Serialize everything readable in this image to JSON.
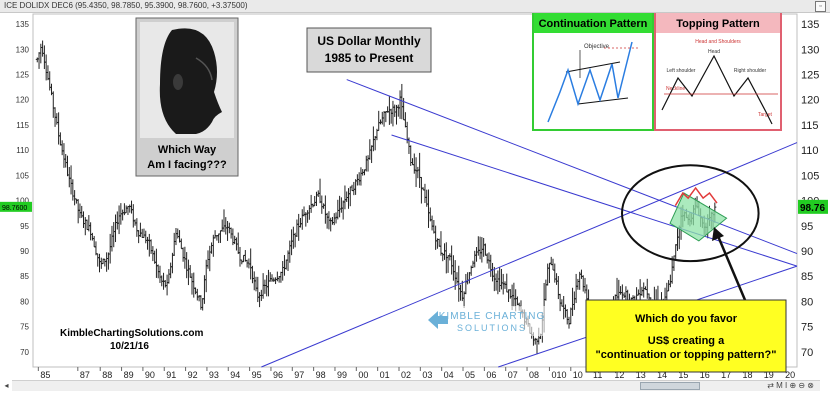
{
  "header": {
    "symbol_text": "ICE DOLIDX DEC6 (95.4350, 98.7850, 95.3900, 98.7600, +3.37500)",
    "window_icon": "restore-icon"
  },
  "title_box": {
    "line1": "US Dollar Monthly",
    "line2": "1985 to Present"
  },
  "photo_box": {
    "caption1": "Which Way",
    "caption2": "Am I facing???"
  },
  "continuation_box": {
    "title": "Continuation Pattern",
    "inner_label": "Objective"
  },
  "topping_box": {
    "title": "Topping Pattern",
    "inner_title": "Head and Shoulders",
    "head": "Head",
    "left_shoulder": "Left shoulder",
    "right_shoulder": "Right shoulder",
    "neckline": "Neckline",
    "target": "Target"
  },
  "callout": {
    "line1": "Which do you favor",
    "line2": "US$ creating a",
    "line3": "\"continuation or topping pattern?\""
  },
  "watermark": {
    "line1": "KIMBLE CHARTING",
    "line2": "SOLUTIONS"
  },
  "footer": {
    "site": "KimbleChartingSolutions.com",
    "date": "10/21/16"
  },
  "price_tag": {
    "value": "98.76",
    "left_value": "98.7600"
  },
  "toolbar": {
    "buttons": "⇄ M I ⊕ ⊖ ⊗"
  },
  "colors": {
    "candles": "#222222",
    "channel": "#3a3ad0",
    "pattern_fill": "#8fe3a8",
    "pattern_arcs": "#e23a3a",
    "callout_bg": "#ffff22",
    "cont_title_bg": "#33dd33",
    "top_title_bg": "#f4b8be",
    "price_tag_bg": "#22cc22"
  },
  "chart_data": {
    "type": "line",
    "series_style": "monthly OHLC bars",
    "title": "US Dollar Monthly",
    "subtitle": "1985 to Present",
    "x_tick_labels": [
      "85",
      "87",
      "88",
      "89",
      "90",
      "91",
      "92",
      "93",
      "94",
      "95",
      "96",
      "97",
      "98",
      "99",
      "00",
      "01",
      "02",
      "03",
      "04",
      "05",
      "06",
      "07",
      "08",
      "010",
      "10",
      "11",
      "12",
      "13",
      "14",
      "15",
      "16",
      "17",
      "18",
      "19",
      "20"
    ],
    "y_ticks": [
      70,
      75,
      80,
      85,
      90,
      95,
      100,
      105,
      110,
      115,
      120,
      125,
      130,
      135
    ],
    "ylim": [
      67,
      137
    ],
    "xlim": [
      1984.8,
      2020.6
    ],
    "grid": false,
    "axis_labels_both_sides": true,
    "price_points": [
      {
        "t": 1985.0,
        "v": 128
      },
      {
        "t": 1985.2,
        "v": 131
      },
      {
        "t": 1985.6,
        "v": 122
      },
      {
        "t": 1986.0,
        "v": 113
      },
      {
        "t": 1986.5,
        "v": 104
      },
      {
        "t": 1987.0,
        "v": 97
      },
      {
        "t": 1987.5,
        "v": 94
      },
      {
        "t": 1987.95,
        "v": 87
      },
      {
        "t": 1988.3,
        "v": 89
      },
      {
        "t": 1988.8,
        "v": 97
      },
      {
        "t": 1989.3,
        "v": 99
      },
      {
        "t": 1989.7,
        "v": 94
      },
      {
        "t": 1990.2,
        "v": 92
      },
      {
        "t": 1990.8,
        "v": 84
      },
      {
        "t": 1991.1,
        "v": 83
      },
      {
        "t": 1991.5,
        "v": 94
      },
      {
        "t": 1992.0,
        "v": 87
      },
      {
        "t": 1992.7,
        "v": 79
      },
      {
        "t": 1992.95,
        "v": 88
      },
      {
        "t": 1993.3,
        "v": 93
      },
      {
        "t": 1993.9,
        "v": 95
      },
      {
        "t": 1994.5,
        "v": 89
      },
      {
        "t": 1995.0,
        "v": 87
      },
      {
        "t": 1995.3,
        "v": 81
      },
      {
        "t": 1995.9,
        "v": 84
      },
      {
        "t": 1996.5,
        "v": 86
      },
      {
        "t": 1997.1,
        "v": 94
      },
      {
        "t": 1997.6,
        "v": 98
      },
      {
        "t": 1998.2,
        "v": 101
      },
      {
        "t": 1998.7,
        "v": 95
      },
      {
        "t": 1999.0,
        "v": 97
      },
      {
        "t": 1999.5,
        "v": 101
      },
      {
        "t": 2000.0,
        "v": 104
      },
      {
        "t": 2000.5,
        "v": 108
      },
      {
        "t": 2000.9,
        "v": 114
      },
      {
        "t": 2001.4,
        "v": 118
      },
      {
        "t": 2001.8,
        "v": 118
      },
      {
        "t": 2002.0,
        "v": 120
      },
      {
        "t": 2002.5,
        "v": 108
      },
      {
        "t": 2002.9,
        "v": 105
      },
      {
        "t": 2003.4,
        "v": 96
      },
      {
        "t": 2003.9,
        "v": 90
      },
      {
        "t": 2004.3,
        "v": 89
      },
      {
        "t": 2004.9,
        "v": 81
      },
      {
        "t": 2005.4,
        "v": 88
      },
      {
        "t": 2005.9,
        "v": 91
      },
      {
        "t": 2006.4,
        "v": 85
      },
      {
        "t": 2006.9,
        "v": 83
      },
      {
        "t": 2007.4,
        "v": 80
      },
      {
        "t": 2007.9,
        "v": 76
      },
      {
        "t": 2008.3,
        "v": 72
      },
      {
        "t": 2008.6,
        "v": 74
      },
      {
        "t": 2008.9,
        "v": 86
      },
      {
        "t": 2009.1,
        "v": 88
      },
      {
        "t": 2009.5,
        "v": 80
      },
      {
        "t": 2009.9,
        "v": 76
      },
      {
        "t": 2010.4,
        "v": 86
      },
      {
        "t": 2010.9,
        "v": 79
      },
      {
        "t": 2011.3,
        "v": 74
      },
      {
        "t": 2011.6,
        "v": 74
      },
      {
        "t": 2011.95,
        "v": 80
      },
      {
        "t": 2012.4,
        "v": 82
      },
      {
        "t": 2012.9,
        "v": 80
      },
      {
        "t": 2013.4,
        "v": 83
      },
      {
        "t": 2013.9,
        "v": 80
      },
      {
        "t": 2014.4,
        "v": 80
      },
      {
        "t": 2014.7,
        "v": 85
      },
      {
        "t": 2015.0,
        "v": 93
      },
      {
        "t": 2015.2,
        "v": 98
      },
      {
        "t": 2015.5,
        "v": 96
      },
      {
        "t": 2015.9,
        "v": 99
      },
      {
        "t": 2016.2,
        "v": 95
      },
      {
        "t": 2016.5,
        "v": 96
      },
      {
        "t": 2016.8,
        "v": 98.8
      }
    ],
    "channel_lines": [
      {
        "t1": 1999.5,
        "v1": 124,
        "t2": 2020.6,
        "v2": 89.5
      },
      {
        "t1": 2001.6,
        "v1": 113,
        "t2": 2020.6,
        "v2": 87
      },
      {
        "t1": 1995.5,
        "v1": 67,
        "t2": 2020.6,
        "v2": 111.5
      },
      {
        "t1": 2006.6,
        "v1": 67,
        "t2": 2020.6,
        "v2": 87
      }
    ],
    "pattern_zone": [
      {
        "t": 2014.65,
        "v": 95.5
      },
      {
        "t": 2015.3,
        "v": 101.5
      },
      {
        "t": 2017.3,
        "v": 96.5
      },
      {
        "t": 2016.0,
        "v": 92
      }
    ],
    "topping_arcs": [
      {
        "t": 2014.9,
        "v": 99
      },
      {
        "t": 2015.25,
        "v": 101.5
      },
      {
        "t": 2015.5,
        "v": 100.5
      },
      {
        "t": 2015.85,
        "v": 102.5
      },
      {
        "t": 2016.2,
        "v": 100.5
      },
      {
        "t": 2016.5,
        "v": 101.5
      },
      {
        "t": 2016.85,
        "v": 99.5
      }
    ],
    "highlight_ellipse": {
      "ct": 2015.6,
      "cv": 97.5,
      "rt": 3.2,
      "rv": 9.5
    },
    "last_value": 98.76
  }
}
